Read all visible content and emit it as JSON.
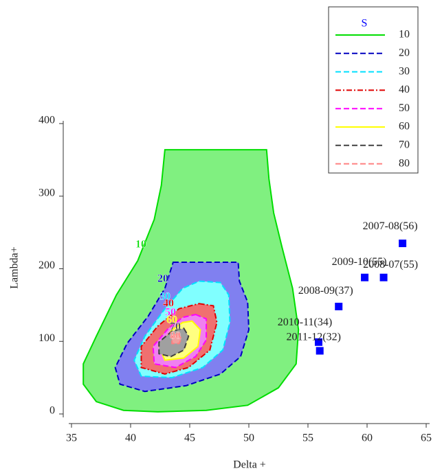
{
  "chart_data": {
    "type": "contour",
    "xlabel": "Delta +",
    "ylabel": "Lambda+",
    "legend_title": "S",
    "legend_title_color": "#0000ff",
    "legend": "upper right",
    "xlim": [
      35,
      65
    ],
    "xticks": [
      35,
      40,
      45,
      50,
      55,
      60,
      65
    ],
    "ylim": [
      0,
      400
    ],
    "yticks": [
      0,
      100,
      200,
      300,
      400
    ],
    "contours": [
      {
        "name": "10",
        "color": "#00dd00",
        "fill": "#80f080",
        "dash": "solid",
        "x": [
          42.9,
          51.5,
          51.7,
          52.1,
          52.8,
          53.7,
          54.2,
          54.0,
          52.5,
          49.9,
          46.4,
          42.3,
          39.4,
          37.1,
          36.0,
          36.0,
          37.1,
          38.8,
          40.6,
          42.0,
          42.6
        ],
        "y": [
          364,
          364,
          324,
          277,
          230,
          173,
          116,
          69,
          36,
          12,
          5,
          3,
          5,
          17,
          41,
          69,
          107,
          164,
          211,
          268,
          315
        ]
      },
      {
        "name": "20",
        "color": "#0000c0",
        "fill": "#8080f0",
        "dash": "dashed",
        "x": [
          43.6,
          49.1,
          49.2,
          49.9,
          50.0,
          49.3,
          47.6,
          44.7,
          41.2,
          39.1,
          38.7,
          39.7,
          41.5,
          42.9
        ],
        "y": [
          209,
          209,
          183,
          154,
          116,
          79,
          55,
          39,
          31,
          41,
          64,
          97,
          135,
          173
        ]
      },
      {
        "name": "30",
        "color": "#00e0ff",
        "fill": "#80ffff",
        "dash": "dashed",
        "x": [
          45.8,
          47.6,
          48.3,
          48.4,
          47.8,
          46.1,
          43.5,
          40.9,
          40.3,
          41.2,
          42.9,
          44.4
        ],
        "y": [
          183,
          181,
          164,
          126,
          88,
          64,
          50,
          52,
          74,
          107,
          145,
          173
        ]
      },
      {
        "name": "40",
        "color": "#e00000",
        "fill": "#f07070",
        "dash": "dashdot",
        "x": [
          45.8,
          47.0,
          47.3,
          46.7,
          44.9,
          42.9,
          40.9,
          40.9,
          42.3,
          44.1
        ],
        "y": [
          152,
          149,
          126,
          88,
          64,
          55,
          64,
          93,
          121,
          145
        ]
      },
      {
        "name": "50",
        "color": "#ff00ff",
        "fill": "#f080f0",
        "dash": "dashed",
        "x": [
          45.5,
          46.4,
          46.4,
          45.5,
          43.8,
          42.0,
          41.9,
          43.2,
          44.4
        ],
        "y": [
          137,
          131,
          102,
          79,
          64,
          69,
          93,
          118,
          133
        ]
      },
      {
        "name": "60",
        "color": "#ffff00",
        "fill": "#ffff80",
        "dash": "solid",
        "x": [
          45.2,
          45.9,
          45.7,
          44.5,
          42.9,
          42.4,
          43.5,
          44.4
        ],
        "y": [
          128,
          116,
          93,
          77,
          74,
          93,
          116,
          126
        ]
      },
      {
        "name": "70",
        "color": "#404040",
        "fill": "#a0a0a0",
        "dash": "dashed",
        "x": [
          44.5,
          44.9,
          44.5,
          43.4,
          42.4,
          42.4,
          43.5
        ],
        "y": [
          118,
          107,
          88,
          79,
          83,
          99,
          114
        ]
      },
      {
        "name": "80",
        "color": "#ff8080",
        "fill": "#f0a0a0",
        "dash": "dashed",
        "x": [
          44.0,
          44.3,
          44.1,
          43.5,
          43.5
        ],
        "y": [
          111,
          104,
          97,
          97,
          107
        ]
      }
    ],
    "points": {
      "color": "#0000ff",
      "labels": [
        "2007-08(56)",
        "2009-10(55)",
        "2008-07(55)",
        "2008-09(37)",
        "2010-11(34)",
        "2011-12(32)"
      ],
      "x": [
        63.0,
        59.8,
        61.4,
        57.6,
        55.9,
        56.0
      ],
      "y": [
        235,
        188,
        188,
        148,
        99,
        87
      ]
    }
  }
}
